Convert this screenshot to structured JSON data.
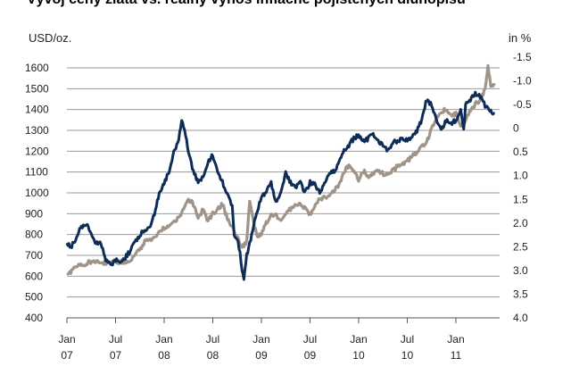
{
  "chart_data": {
    "type": "line",
    "title": "Vývoj ceny zlata vs. reálný výnos inflačně pojištěných dluhopisů",
    "left_unit": "USD/oz.",
    "right_unit": "in %",
    "left_axis": {
      "min": 400,
      "max": 1600,
      "step": 100,
      "ticks": [
        "400",
        "500",
        "600",
        "700",
        "800",
        "900",
        "1000",
        "1100",
        "1200",
        "1300",
        "1400",
        "1500",
        "1600"
      ]
    },
    "right_axis": {
      "top": -1.5,
      "bottom": 4.0,
      "inverted": true,
      "ticks": [
        "-1.5",
        "-1.0",
        "-0.5",
        "0",
        "0.5",
        "1.0",
        "1.5",
        "2.0",
        "2.5",
        "3.0",
        "3.5",
        "4.0"
      ]
    },
    "x_ticks": [
      {
        "label1": "Jan",
        "label2": "07",
        "t": 2007.0
      },
      {
        "label1": "Jul",
        "label2": "07",
        "t": 2007.5
      },
      {
        "label1": "Jan",
        "label2": "08",
        "t": 2008.0
      },
      {
        "label1": "Jul",
        "label2": "08",
        "t": 2008.5
      },
      {
        "label1": "Jan",
        "label2": "09",
        "t": 2009.0
      },
      {
        "label1": "Jul",
        "label2": "09",
        "t": 2009.5
      },
      {
        "label1": "Jan",
        "label2": "10",
        "t": 2010.0
      },
      {
        "label1": "Jul",
        "label2": "10",
        "t": 2010.5
      },
      {
        "label1": "Jan",
        "label2": "11",
        "t": 2011.0
      }
    ],
    "x_range": [
      2007.0,
      2011.45
    ],
    "grid": true,
    "series": [
      {
        "axis": "right",
        "color": "#a09488",
        "points": [
          [
            2007.0,
            3.1
          ],
          [
            2007.05,
            3.0
          ],
          [
            2007.12,
            2.9
          ],
          [
            2007.2,
            2.85
          ],
          [
            2007.3,
            2.8
          ],
          [
            2007.4,
            2.85
          ],
          [
            2007.5,
            2.8
          ],
          [
            2007.6,
            2.85
          ],
          [
            2007.7,
            2.7
          ],
          [
            2007.8,
            2.4
          ],
          [
            2007.9,
            2.3
          ],
          [
            2008.0,
            2.1
          ],
          [
            2008.08,
            2.0
          ],
          [
            2008.15,
            1.9
          ],
          [
            2008.2,
            1.7
          ],
          [
            2008.25,
            1.5
          ],
          [
            2008.3,
            1.6
          ],
          [
            2008.35,
            1.9
          ],
          [
            2008.4,
            1.7
          ],
          [
            2008.45,
            1.95
          ],
          [
            2008.5,
            1.8
          ],
          [
            2008.55,
            1.7
          ],
          [
            2008.6,
            1.6
          ],
          [
            2008.65,
            1.9
          ],
          [
            2008.7,
            2.1
          ],
          [
            2008.75,
            2.3
          ],
          [
            2008.8,
            2.5
          ],
          [
            2008.85,
            2.4
          ],
          [
            2008.88,
            1.5
          ],
          [
            2008.92,
            2.0
          ],
          [
            2008.96,
            2.3
          ],
          [
            2009.0,
            2.2
          ],
          [
            2009.05,
            2.0
          ],
          [
            2009.1,
            1.8
          ],
          [
            2009.2,
            1.9
          ],
          [
            2009.3,
            1.7
          ],
          [
            2009.4,
            1.6
          ],
          [
            2009.5,
            1.8
          ],
          [
            2009.6,
            1.5
          ],
          [
            2009.7,
            1.4
          ],
          [
            2009.8,
            1.2
          ],
          [
            2009.85,
            0.9
          ],
          [
            2009.9,
            0.8
          ],
          [
            2009.95,
            0.9
          ],
          [
            2010.0,
            1.1
          ],
          [
            2010.05,
            0.9
          ],
          [
            2010.1,
            1.0
          ],
          [
            2010.2,
            0.9
          ],
          [
            2010.3,
            1.0
          ],
          [
            2010.4,
            0.8
          ],
          [
            2010.5,
            0.7
          ],
          [
            2010.55,
            0.6
          ],
          [
            2010.6,
            0.5
          ],
          [
            2010.65,
            0.4
          ],
          [
            2010.7,
            0.3
          ],
          [
            2010.75,
            0.0
          ],
          [
            2010.8,
            -0.2
          ],
          [
            2010.85,
            -0.35
          ],
          [
            2010.9,
            -0.4
          ],
          [
            2010.95,
            -0.3
          ],
          [
            2011.0,
            -0.3
          ],
          [
            2011.05,
            0.0
          ],
          [
            2011.1,
            -0.2
          ],
          [
            2011.15,
            -0.4
          ],
          [
            2011.2,
            -0.5
          ],
          [
            2011.25,
            -0.6
          ],
          [
            2011.3,
            -0.8
          ],
          [
            2011.33,
            -1.3
          ],
          [
            2011.36,
            -0.9
          ],
          [
            2011.4,
            -0.9
          ]
        ]
      },
      {
        "axis": "left",
        "color": "#0d2c57",
        "points": [
          [
            2007.0,
            750
          ],
          [
            2007.05,
            745
          ],
          [
            2007.1,
            790
          ],
          [
            2007.15,
            840
          ],
          [
            2007.2,
            850
          ],
          [
            2007.25,
            800
          ],
          [
            2007.3,
            760
          ],
          [
            2007.35,
            760
          ],
          [
            2007.4,
            680
          ],
          [
            2007.45,
            650
          ],
          [
            2007.5,
            680
          ],
          [
            2007.55,
            670
          ],
          [
            2007.6,
            690
          ],
          [
            2007.65,
            720
          ],
          [
            2007.7,
            760
          ],
          [
            2007.75,
            800
          ],
          [
            2007.8,
            820
          ],
          [
            2007.85,
            830
          ],
          [
            2007.9,
            900
          ],
          [
            2007.95,
            1000
          ],
          [
            2008.0,
            1050
          ],
          [
            2008.05,
            1100
          ],
          [
            2008.1,
            1200
          ],
          [
            2008.15,
            1250
          ],
          [
            2008.18,
            1350
          ],
          [
            2008.21,
            1300
          ],
          [
            2008.25,
            1200
          ],
          [
            2008.3,
            1100
          ],
          [
            2008.35,
            1050
          ],
          [
            2008.4,
            1080
          ],
          [
            2008.45,
            1150
          ],
          [
            2008.5,
            1180
          ],
          [
            2008.55,
            1100
          ],
          [
            2008.6,
            1050
          ],
          [
            2008.65,
            1000
          ],
          [
            2008.7,
            930
          ],
          [
            2008.72,
            800
          ],
          [
            2008.75,
            780
          ],
          [
            2008.78,
            720
          ],
          [
            2008.8,
            630
          ],
          [
            2008.82,
            580
          ],
          [
            2008.85,
            700
          ],
          [
            2008.9,
            800
          ],
          [
            2008.95,
            900
          ],
          [
            2009.0,
            980
          ],
          [
            2009.05,
            1000
          ],
          [
            2009.1,
            1050
          ],
          [
            2009.15,
            950
          ],
          [
            2009.2,
            1000
          ],
          [
            2009.25,
            1100
          ],
          [
            2009.3,
            1050
          ],
          [
            2009.35,
            1030
          ],
          [
            2009.4,
            1050
          ],
          [
            2009.45,
            1000
          ],
          [
            2009.5,
            1050
          ],
          [
            2009.55,
            1040
          ],
          [
            2009.6,
            1000
          ],
          [
            2009.65,
            1050
          ],
          [
            2009.7,
            1100
          ],
          [
            2009.75,
            1100
          ],
          [
            2009.8,
            1150
          ],
          [
            2009.85,
            1200
          ],
          [
            2009.9,
            1230
          ],
          [
            2009.95,
            1260
          ],
          [
            2010.0,
            1280
          ],
          [
            2010.05,
            1250
          ],
          [
            2010.1,
            1260
          ],
          [
            2010.15,
            1280
          ],
          [
            2010.2,
            1250
          ],
          [
            2010.25,
            1230
          ],
          [
            2010.3,
            1200
          ],
          [
            2010.35,
            1240
          ],
          [
            2010.4,
            1250
          ],
          [
            2010.45,
            1260
          ],
          [
            2010.5,
            1250
          ],
          [
            2010.55,
            1270
          ],
          [
            2010.6,
            1300
          ],
          [
            2010.65,
            1350
          ],
          [
            2010.7,
            1450
          ],
          [
            2010.75,
            1420
          ],
          [
            2010.78,
            1380
          ],
          [
            2010.82,
            1330
          ],
          [
            2010.85,
            1300
          ],
          [
            2010.9,
            1350
          ],
          [
            2010.95,
            1330
          ],
          [
            2011.0,
            1350
          ],
          [
            2011.05,
            1400
          ],
          [
            2011.08,
            1300
          ],
          [
            2011.1,
            1420
          ],
          [
            2011.15,
            1450
          ],
          [
            2011.2,
            1480
          ],
          [
            2011.25,
            1460
          ],
          [
            2011.3,
            1420
          ],
          [
            2011.35,
            1400
          ],
          [
            2011.4,
            1380
          ]
        ]
      }
    ]
  }
}
